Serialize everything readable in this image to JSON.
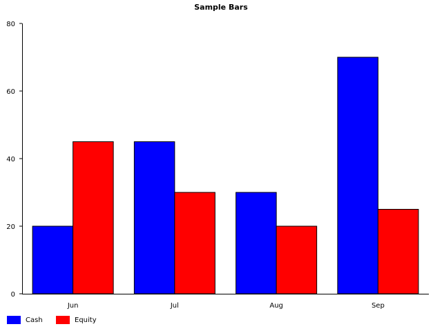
{
  "chart_data": {
    "type": "bar",
    "title": "Sample Bars",
    "categories": [
      "Jun",
      "Jul",
      "Aug",
      "Sep"
    ],
    "series": [
      {
        "name": "Cash",
        "color": "#0000ff",
        "values": [
          20,
          45,
          30,
          70
        ]
      },
      {
        "name": "Equity",
        "color": "#ff0000",
        "values": [
          45,
          30,
          20,
          25
        ]
      }
    ],
    "ylim": [
      0,
      80
    ],
    "yticks": [
      0,
      20,
      40,
      60,
      80
    ],
    "grid": false,
    "legend_position": "bottom-left"
  }
}
